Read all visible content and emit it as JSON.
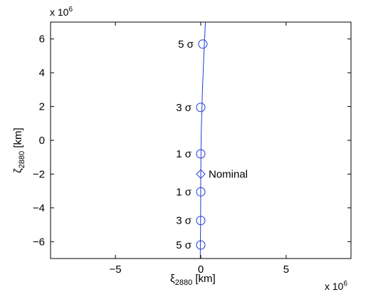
{
  "chart_data": {
    "type": "line",
    "title": "",
    "x_multiplier": "x 10",
    "x_multiplier_exp": "6",
    "y_multiplier": "x 10",
    "y_multiplier_exp": "6",
    "xlabel_main": "ξ",
    "xlabel_sub": "2880",
    "xlabel_unit": " [km]",
    "ylabel_main": "ζ",
    "ylabel_sub": "2880",
    "ylabel_unit": " [km]",
    "xlim": [
      -8.8,
      8.8
    ],
    "ylim": [
      -7,
      7
    ],
    "xticks": [
      -5,
      0,
      5
    ],
    "xtick_labels": [
      "−5",
      "0",
      "5"
    ],
    "yticks": [
      -6,
      -4,
      -2,
      0,
      2,
      4,
      6
    ],
    "ytick_labels": [
      "−6",
      "−4",
      "−2",
      "0",
      "2",
      "4",
      "6"
    ],
    "grid": false,
    "line_color": "#1f3bd6",
    "series": [
      {
        "values": [
          {
            "x": -0.03,
            "y": -7.0
          },
          {
            "x": -0.01,
            "y": -4.5
          },
          {
            "x": 0.0,
            "y": -2.0
          },
          {
            "x": 0.03,
            "y": 0.5
          },
          {
            "x": 0.1,
            "y": 3.0
          },
          {
            "x": 0.2,
            "y": 5.5
          },
          {
            "x": 0.27,
            "y": 7.0
          }
        ]
      }
    ],
    "markers": [
      {
        "x": 0.12,
        "y": 5.7,
        "shape": "circle",
        "label": "5 σ"
      },
      {
        "x": 0.0,
        "y": 1.95,
        "shape": "circle",
        "label": "3 σ"
      },
      {
        "x": 0.0,
        "y": -0.8,
        "shape": "circle",
        "label": "1 σ"
      },
      {
        "x": 0.0,
        "y": -2.0,
        "shape": "diamond",
        "label": "Nominal"
      },
      {
        "x": 0.0,
        "y": -3.05,
        "shape": "circle",
        "label": "1 σ"
      },
      {
        "x": 0.0,
        "y": -4.75,
        "shape": "circle",
        "label": "3 σ"
      },
      {
        "x": 0.0,
        "y": -6.2,
        "shape": "circle",
        "label": "5 σ"
      }
    ]
  }
}
